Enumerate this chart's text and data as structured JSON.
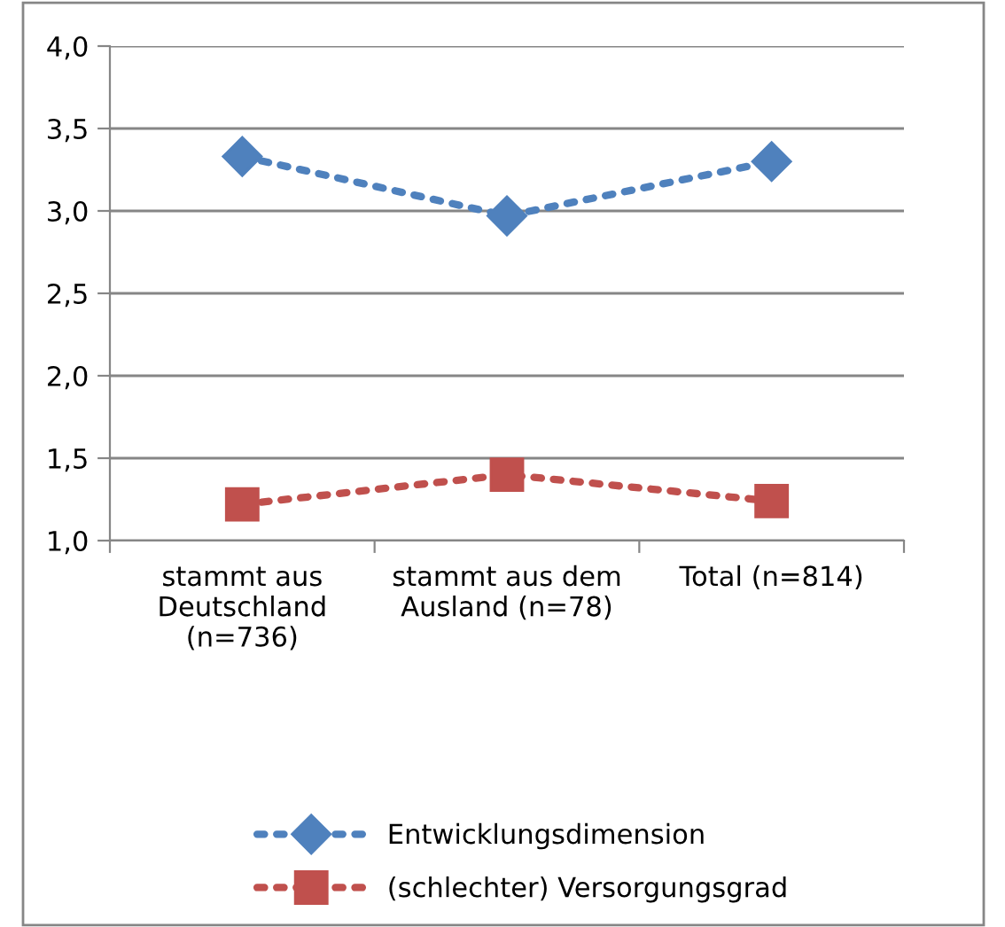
{
  "chart_data": {
    "type": "line",
    "categories": [
      "stammt aus Deutschland (n=736)",
      "stammt aus dem Ausland (n=78)",
      "Total (n=814)"
    ],
    "series": [
      {
        "name": "Entwicklungsdimension",
        "color": "#4f81bd",
        "marker": "diamond",
        "values": [
          3.33,
          2.97,
          3.3
        ]
      },
      {
        "name": "(schlechter) Versorgungsgrad",
        "color": "#c0504d",
        "marker": "square",
        "values": [
          1.22,
          1.4,
          1.24
        ]
      }
    ],
    "line_style": "dotted",
    "ylim": [
      1.0,
      4.0
    ],
    "yticks": [
      {
        "value": 1.0,
        "label": "1,0"
      },
      {
        "value": 1.5,
        "label": "1,5"
      },
      {
        "value": 2.0,
        "label": "2,0"
      },
      {
        "value": 2.5,
        "label": "2,5"
      },
      {
        "value": 3.0,
        "label": "3,0"
      },
      {
        "value": 3.5,
        "label": "3,5"
      },
      {
        "value": 4.0,
        "label": "4,0"
      }
    ],
    "grid": "y",
    "legend": "bottom"
  }
}
